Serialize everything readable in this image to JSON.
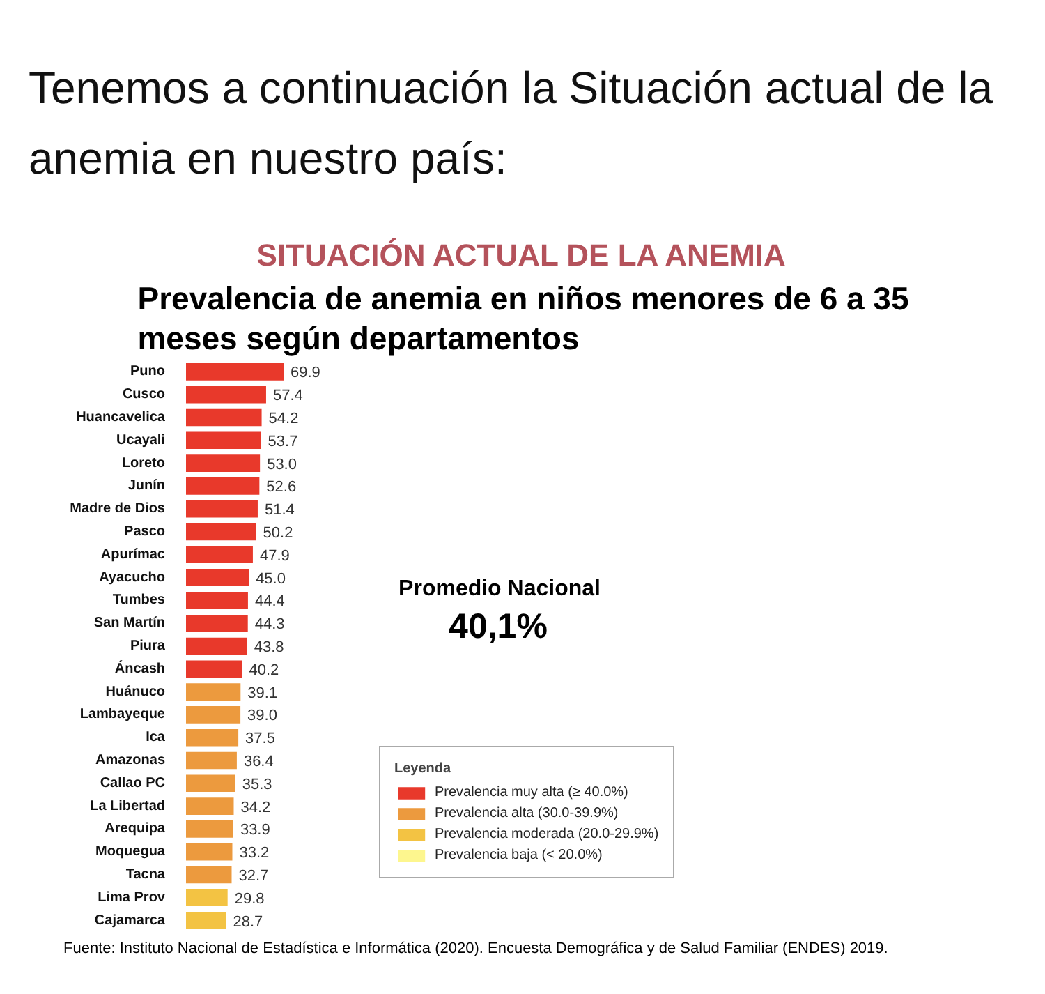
{
  "chart_data": {
    "type": "bar",
    "orientation": "horizontal",
    "stacked": true,
    "title": "SITUACIÓN ACTUAL DE LA ANEMIA",
    "subtitle": "Prevalencia de anemia en niños menores de 6 a 35 meses según departamentos",
    "categories": [
      "Puno",
      "Cusco",
      "Huancavelica",
      "Ucayali",
      "Loreto",
      "Junín",
      "Madre de Dios",
      "Pasco",
      "Apurímac",
      "Ayacucho",
      "Tumbes",
      "San Martín",
      "Piura",
      "Áncash",
      "Huánuco",
      "Lambayeque",
      "Ica",
      "Amazonas",
      "Callao PC",
      "La Libertad",
      "Arequipa",
      "Moquegua",
      "Tacna",
      "Lima Prov",
      "Cajamarca"
    ],
    "series": [
      {
        "name": "Prevalencia muy alta (≥ 40.0%)",
        "color": "#e8392b",
        "values": [
          69.9,
          57.4,
          54.2,
          53.7,
          53.0,
          52.6,
          51.4,
          50.2,
          47.9,
          45.0,
          44.4,
          44.3,
          43.8,
          40.2,
          null,
          null,
          null,
          null,
          null,
          null,
          null,
          null,
          null,
          null,
          null
        ],
        "value_labels": [
          "69.9",
          "57.4",
          "54.2",
          "53.7",
          "53.0",
          "52.6",
          "51.4",
          "50.2",
          "47.9",
          "45.0",
          "44.4",
          "44.3",
          "43.8",
          "40.2",
          null,
          null,
          null,
          null,
          null,
          null,
          null,
          null,
          null,
          null,
          null
        ]
      },
      {
        "name": "Prevalencia alta (30.0-39.9%)",
        "color": "#ec9a3e",
        "values": [
          null,
          null,
          null,
          null,
          null,
          null,
          null,
          null,
          null,
          null,
          null,
          null,
          null,
          null,
          39.1,
          39.0,
          37.5,
          36.4,
          35.3,
          34.2,
          33.9,
          33.2,
          32.7,
          null,
          null
        ],
        "value_labels": [
          null,
          null,
          null,
          null,
          null,
          null,
          null,
          null,
          null,
          null,
          null,
          null,
          null,
          null,
          "39.1",
          "39.0",
          "37.5",
          "36.4",
          "35.3",
          "34.2",
          "33.9",
          "33.2",
          "32.7",
          null,
          null
        ]
      },
      {
        "name": "Prevalencia moderada (20.0-29.9%)",
        "color": "#f3c343",
        "values": [
          null,
          null,
          null,
          null,
          null,
          null,
          null,
          null,
          null,
          null,
          null,
          null,
          null,
          null,
          null,
          null,
          null,
          null,
          null,
          null,
          null,
          null,
          null,
          29.8,
          28.7
        ],
        "value_labels": [
          null,
          null,
          null,
          null,
          null,
          null,
          null,
          null,
          null,
          null,
          null,
          null,
          null,
          null,
          null,
          null,
          null,
          null,
          null,
          null,
          null,
          null,
          null,
          "29.8",
          "28.7"
        ]
      },
      {
        "name": "Prevalencia baja (< 20.0%)",
        "color": "#fdf68e",
        "values": [
          null,
          null,
          null,
          null,
          null,
          null,
          null,
          null,
          null,
          null,
          null,
          null,
          null,
          null,
          null,
          null,
          null,
          null,
          null,
          null,
          null,
          null,
          null,
          null,
          null
        ]
      }
    ],
    "legend_title": "Leyenda",
    "legend": "bottom",
    "tick_labels": "y",
    "annotations": [
      "Tenemos a continuación la Situación actual de la anemia en nuestro país:",
      "Promedio Nacional",
      "40,1%",
      "Fuente: Instituto Nacional de Estadística e Informática (2020). Encuesta Demográfica y de Salud Familiar (ENDES) 2019."
    ]
  }
}
